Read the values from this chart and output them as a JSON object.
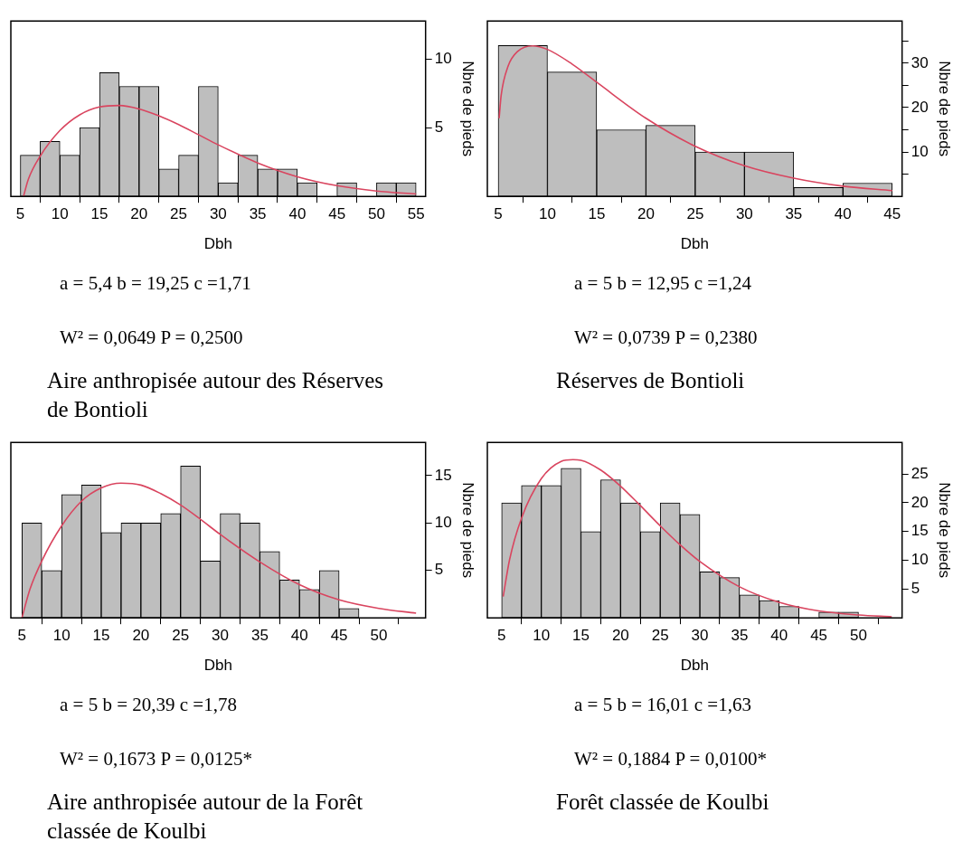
{
  "chart_data": [
    {
      "type": "histogram",
      "bins": [
        5,
        7.5,
        10,
        12.5,
        15,
        17.5,
        20,
        22.5,
        25,
        27.5,
        30,
        32.5,
        35,
        37.5,
        40,
        42.5,
        45,
        47.5,
        50,
        52.5,
        55
      ],
      "values": [
        3,
        4,
        3,
        5,
        9,
        8,
        8,
        2,
        3,
        8,
        1,
        3,
        2,
        2,
        1,
        0,
        1,
        0,
        1,
        1
      ],
      "color": "#bebebe",
      "series": [
        {
          "type": "line",
          "color": "#d9455f",
          "x": [
            5.4,
            6,
            7.5,
            10,
            12.5,
            15,
            17.5,
            20,
            22.5,
            25,
            27.5,
            30,
            35,
            40,
            45,
            50,
            55
          ],
          "values": [
            0,
            1.23,
            2.92,
            4.79,
            5.93,
            6.5,
            6.61,
            6.36,
            5.86,
            5.22,
            4.49,
            3.75,
            2.43,
            1.43,
            0.78,
            0.39,
            0.18
          ]
        }
      ],
      "xlim": [
        3.8,
        56.2
      ],
      "xticks": [
        5,
        10,
        15,
        20,
        25,
        30,
        35,
        40,
        45,
        50,
        55
      ],
      "ylim": [
        0,
        12.75
      ],
      "yticks": [
        5,
        10
      ],
      "xlabel": "Dbh",
      "ylabel": "Nbre de pieds",
      "annotations": [
        "a = 5,4  b = 19,25  c =1,71",
        "W² = 0,0649  P = 0,2500",
        "Aire anthropisée autour des Réserves de Bontioli"
      ]
    },
    {
      "type": "histogram",
      "bins": [
        5,
        10,
        15,
        20,
        25,
        30,
        35,
        40,
        45
      ],
      "values": [
        34,
        28,
        15,
        16,
        10,
        10,
        2,
        3
      ],
      "color": "#bebebe",
      "series": [
        {
          "type": "line",
          "color": "#d9455f",
          "x": [
            5.1,
            5.3,
            6,
            7,
            8.5,
            10,
            12.5,
            15,
            20,
            25,
            30,
            35,
            40,
            45
          ],
          "values": [
            17.6,
            22.7,
            29.3,
            32.7,
            33.9,
            33.1,
            29.8,
            25.7,
            17.6,
            11.3,
            6.9,
            4.1,
            2.3,
            1.3
          ]
        }
      ],
      "xlim": [
        3.9,
        46
      ],
      "xticks": [
        5,
        10,
        15,
        20,
        25,
        30,
        35,
        40,
        45
      ],
      "ylim": [
        0,
        39.5
      ],
      "yticks": [
        {
          "value": 5,
          "label": null
        },
        10,
        {
          "value": 15,
          "label": null
        },
        20,
        {
          "value": 25,
          "label": null
        },
        30,
        {
          "value": 35,
          "label": null
        }
      ],
      "xlabel": "Dbh",
      "ylabel": "Nbre de pieds",
      "annotations": [
        "a = 5  b = 12,95  c =1,24",
        "W² = 0,0739  P = 0,2380",
        "Réserves de Bontioli"
      ]
    },
    {
      "type": "histogram",
      "bins": [
        5,
        7.5,
        10,
        12.5,
        15,
        17.5,
        20,
        22.5,
        25,
        27.5,
        30,
        32.5,
        35,
        37.5,
        40,
        42.5,
        45,
        47.5
      ],
      "values": [
        10,
        5,
        13,
        14,
        9,
        10,
        10,
        11,
        16,
        6,
        11,
        10,
        7,
        4,
        3,
        5,
        1
      ],
      "color": "#bebebe",
      "series": [
        {
          "type": "line",
          "color": "#d9455f",
          "x": [
            5,
            6,
            7.5,
            10,
            12.5,
            15,
            17.5,
            20,
            22.5,
            25,
            27.5,
            30,
            35,
            40,
            45,
            50,
            54.7
          ],
          "values": [
            0,
            3,
            6,
            9.7,
            12.3,
            13.7,
            14.2,
            14,
            13.1,
            11.9,
            10.4,
            8.8,
            5.9,
            3.5,
            1.9,
            1,
            0.5
          ]
        }
      ],
      "xlim": [
        3.6,
        55.9
      ],
      "xticks": [
        5,
        10,
        15,
        20,
        25,
        30,
        35,
        40,
        45,
        50
      ],
      "ylim": [
        0,
        18.5
      ],
      "yticks": [
        5,
        10,
        15
      ],
      "xlabel": "Dbh",
      "ylabel": "Nbre de pieds",
      "annotations": [
        "a = 5  b = 20,39  c =1,78",
        "W² = 0,1673  P = 0,0125*",
        "Aire anthropisée autour de la Forêt classée de Koulbi"
      ]
    },
    {
      "type": "histogram",
      "bins": [
        5,
        7.5,
        10,
        12.5,
        15,
        17.5,
        20,
        22.5,
        25,
        27.5,
        30,
        32.5,
        35,
        37.5,
        40,
        42.5,
        45,
        47.5,
        50
      ],
      "values": [
        20,
        23,
        23,
        26,
        15,
        24,
        20,
        15,
        20,
        18,
        8,
        7,
        4,
        3,
        2,
        0,
        1,
        1
      ],
      "color": "#bebebe",
      "series": [
        {
          "type": "line",
          "color": "#d9455f",
          "x": [
            5.2,
            6,
            7.5,
            10,
            12.5,
            14,
            15,
            17.5,
            20,
            22.5,
            25,
            27.5,
            30,
            35,
            40,
            45,
            50,
            54.2
          ],
          "values": [
            3.7,
            10.1,
            17.3,
            24.2,
            27.2,
            27.5,
            27.4,
            25.7,
            22.9,
            19.5,
            16,
            12.7,
            9.8,
            5.4,
            2.7,
            1.2,
            0.5,
            0.2
          ]
        }
      ],
      "xlim": [
        3.2,
        55.5
      ],
      "xticks": [
        5,
        10,
        15,
        20,
        25,
        30,
        35,
        40,
        45,
        50
      ],
      "ylim": [
        0,
        30.5
      ],
      "yticks": [
        5,
        10,
        15,
        20,
        25
      ],
      "xlabel": "Dbh",
      "ylabel": "Nbre de pieds",
      "annotations": [
        "a = 5  b = 16,01  c =1,63",
        "W² = 0,1884  P = 0,0100*",
        "Forêt classée de Koulbi"
      ]
    }
  ]
}
